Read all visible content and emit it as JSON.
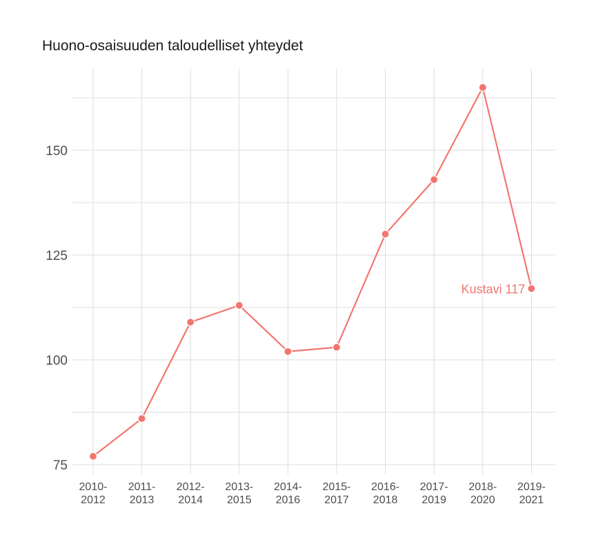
{
  "title": "Huono-osaisuuden taloudelliset yhteydet",
  "colors": {
    "series": "#F2766F",
    "grid": "#dcdcdc",
    "text": "#4d4d4d"
  },
  "chart_data": {
    "type": "line",
    "title": "Huono-osaisuuden taloudelliset yhteydet",
    "xlabel": "",
    "ylabel": "",
    "categories": [
      [
        "2010-",
        "2012"
      ],
      [
        "2011-",
        "2013"
      ],
      [
        "2012-",
        "2014"
      ],
      [
        "2013-",
        "2015"
      ],
      [
        "2014-",
        "2016"
      ],
      [
        "2015-",
        "2017"
      ],
      [
        "2016-",
        "2018"
      ],
      [
        "2017-",
        "2019"
      ],
      [
        "2018-",
        "2020"
      ],
      [
        "2019-",
        "2021"
      ]
    ],
    "series": [
      {
        "values": [
          77,
          86,
          109,
          113,
          102,
          103,
          130,
          143,
          165,
          117
        ]
      }
    ],
    "yticks": [
      75,
      100,
      125,
      150
    ],
    "ylim": [
      75,
      166
    ],
    "grid": true,
    "legend": "none",
    "annotation": {
      "text": "Kustavi 117",
      "category_index": 9,
      "value": 117
    }
  }
}
